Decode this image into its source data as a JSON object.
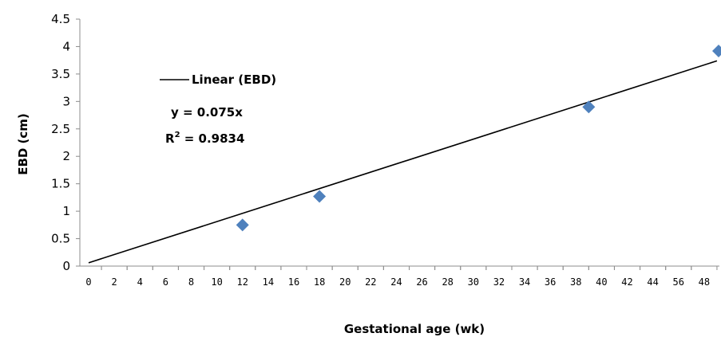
{
  "chart_data": {
    "type": "scatter",
    "xlabel": "Gestational age (wk)",
    "ylabel": "EBD (cm)",
    "ylim": [
      0,
      4.5
    ],
    "y_ticks": [
      "0",
      "0.5",
      "1",
      "1.5",
      "2",
      "2.5",
      "3",
      "3.5",
      "4",
      "4.5"
    ],
    "x_ticks": [
      "0",
      "2",
      "4",
      "6",
      "8",
      "10",
      "12",
      "14",
      "16",
      "18",
      "20",
      "22",
      "24",
      "26",
      "28",
      "30",
      "32",
      "34",
      "36",
      "38",
      "40",
      "42",
      "44",
      "56",
      "48"
    ],
    "series": [
      {
        "points": [
          {
            "x": 12,
            "y": 0.75
          },
          {
            "x": 18,
            "y": 1.27
          },
          {
            "x": 39,
            "y": 2.9
          },
          {
            "x": 49,
            "y": 3.92
          }
        ],
        "color": "#4f81bd",
        "marker": "diamond"
      }
    ],
    "trendline": {
      "legend_label": "Linear (EBD)",
      "equation": "y = 0.075x",
      "r2_prefix": "R",
      "r2_sup": "2",
      "r2_rest": " = 0.9834",
      "color": "#000000",
      "start": {
        "x": 0,
        "y": 0.06
      },
      "end": {
        "x": 49,
        "y": 3.74
      }
    },
    "grid": false
  }
}
